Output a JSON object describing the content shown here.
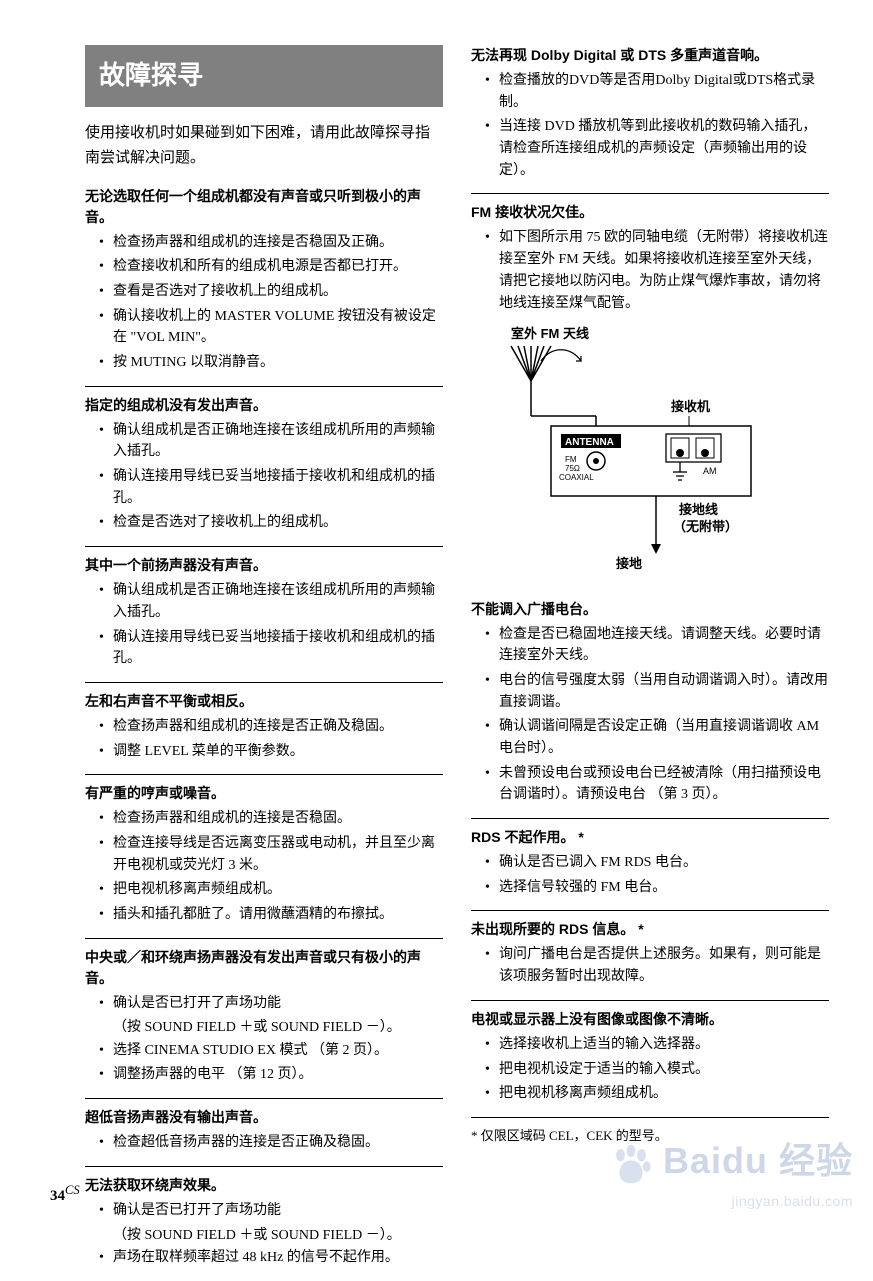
{
  "title": "故障探寻",
  "intro": "使用接收机时如果碰到如下困难，请用此故障探寻指南尝试解决问题。",
  "colors": {
    "title_bg": "#808080",
    "title_fg": "#ffffff",
    "rule": "#000000",
    "text": "#000000",
    "watermark": "#6a87b8"
  },
  "left_sections": [
    {
      "heading": "无论选取任何一个组成机都没有声音或只听到极小的声音。",
      "items": [
        "检查扬声器和组成机的连接是否稳固及正确。",
        "检查接收机和所有的组成机电源是否都已打开。",
        "查看是否选对了接收机上的组成机。",
        "确认接收机上的 MASTER VOLUME 按钮没有被设定在 \"VOL MIN\"。",
        "按 MUTING 以取消静音。"
      ]
    },
    {
      "heading": "指定的组成机没有发出声音。",
      "items": [
        "确认组成机是否正确地连接在该组成机所用的声频输入插孔。",
        "确认连接用导线已妥当地接插于接收机和组成机的插孔。",
        "检查是否选对了接收机上的组成机。"
      ]
    },
    {
      "heading": "其中一个前扬声器没有声音。",
      "items": [
        "确认组成机是否正确地连接在该组成机所用的声频输入插孔。",
        "确认连接用导线已妥当地接插于接收机和组成机的插孔。"
      ]
    },
    {
      "heading": "左和右声音不平衡或相反。",
      "items": [
        "检查扬声器和组成机的连接是否正确及稳固。",
        "调整 LEVEL 菜单的平衡参数。"
      ]
    },
    {
      "heading": "有严重的哼声或噪音。",
      "items": [
        "检查扬声器和组成机的连接是否稳固。",
        "检查连接导线是否远离变压器或电动机，并且至少离开电视机或荧光灯 3 米。",
        "把电视机移离声频组成机。",
        "插头和插孔都脏了。请用微蘸酒精的布擦拭。"
      ]
    },
    {
      "heading": "中央或／和环绕声扬声器没有发出声音或只有极小的声音。",
      "items": [
        "确认是否已打开了声场功能",
        {
          "sub": "（按 SOUND FIELD ＋或 SOUND FIELD －）。"
        },
        "选择 CINEMA STUDIO EX 模式 （第 2 页）。",
        "调整扬声器的电平 （第 12 页）。"
      ]
    },
    {
      "heading": "超低音扬声器没有输出声音。",
      "items": [
        "检查超低音扬声器的连接是否正确及稳固。"
      ]
    },
    {
      "heading": "无法获取环绕声效果。",
      "items": [
        "确认是否已打开了声场功能",
        {
          "sub": "（按 SOUND FIELD ＋或 SOUND FIELD －）。"
        },
        "声场在取样频率超过 48 kHz 的信号不起作用。"
      ]
    }
  ],
  "right_sections_a": [
    {
      "heading": "无法再现 Dolby Digital 或 DTS 多重声道音响。",
      "items": [
        "检查播放的DVD等是否用Dolby Digital或DTS格式录制。",
        "当连接 DVD 播放机等到此接收机的数码输入插孔，请检查所连接组成机的声频设定（声频输出用的设定）。"
      ]
    },
    {
      "heading": "FM 接收状况欠佳。",
      "items": [
        "如下图所示用 75 欧的同轴电缆（无附带）将接收机连接至室外 FM 天线。如果将接收机连接至室外天线，请把它接地以防闪电。为防止煤气爆炸事故，请勿将地线连接至煤气配管。"
      ]
    }
  ],
  "diagram": {
    "label_outdoor": "室外 FM 天线",
    "label_receiver": "接收机",
    "label_antenna": "ANTENNA",
    "label_fm": "FM",
    "label_75": "75Ω",
    "label_coax": "COAXIAL",
    "label_am": "AM",
    "label_groundwire": "接地线",
    "label_notincl": "（无附带）",
    "label_ground": "接地"
  },
  "right_sections_b": [
    {
      "heading": "不能调入广播电台。",
      "items": [
        "检查是否已稳固地连接天线。请调整天线。必要时请连接室外天线。",
        "电台的信号强度太弱（当用自动调谐调入时）。请改用直接调谐。",
        "确认调谐间隔是否设定正确（当用直接调谐调收 AM 电台时）。",
        "未曾预设电台或预设电台已经被清除（用扫描预设电台调谐时）。请预设电台 （第 3 页）。"
      ]
    },
    {
      "heading": "RDS 不起作用。 *",
      "items": [
        "确认是否已调入 FM RDS 电台。",
        "选择信号较强的 FM 电台。"
      ]
    },
    {
      "heading": "未出现所要的 RDS 信息。 *",
      "items": [
        "询问广播电台是否提供上述服务。如果有，则可能是该项服务暂时出现故障。"
      ]
    },
    {
      "heading": "电视或显示器上没有图像或图像不清晰。",
      "items": [
        "选择接收机上适当的输入选择器。",
        "把电视机设定于适当的输入模式。",
        "把电视机移离声频组成机。"
      ]
    }
  ],
  "footnote": "* 仅限区域码 CEL，CEK 的型号。",
  "page_number": "34",
  "page_number_sup": "CS",
  "watermark_main": "Baidu 经验",
  "watermark_sub": "jingyan.baidu.com"
}
